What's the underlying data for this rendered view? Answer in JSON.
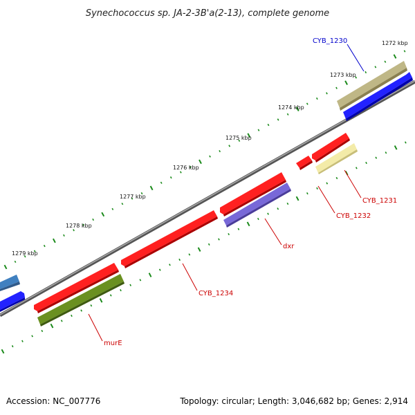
{
  "title": "Synechococcus sp. JA-2-3B'a(2-13), complete genome",
  "kbp_ticks": [
    "1272 kbp",
    "1273 kbp",
    "1274 kbp",
    "1275 kbp",
    "1276 kbp",
    "1277 kbp",
    "1278 kbp",
    "1279 kbp"
  ],
  "genes": [
    {
      "label": "CYB_1230",
      "color": "#0000cc"
    },
    {
      "label": "CYB_1231",
      "color": "#cc0000"
    },
    {
      "label": "CYB_1232",
      "color": "#cc0000"
    },
    {
      "label": "dxr",
      "color": "#cc0000"
    },
    {
      "label": "CYB_1234",
      "color": "#cc0000"
    },
    {
      "label": "murE",
      "color": "#cc0000"
    }
  ],
  "colors": {
    "backbone": "#888888",
    "cds_forward": "#0000ff",
    "cds_reverse": "#ff0000",
    "olive_feature": "#a8a070",
    "pale_yellow_feature": "#f0e8a0",
    "purple_feature": "#7060d0",
    "green_feature": "#6a9020",
    "tick_dots": "#1a8a1a"
  },
  "footer": {
    "accession": "Accession: NC_007776",
    "stats": "Topology: circular; Length: 3,046,682 bp; Genes: 2,914"
  }
}
